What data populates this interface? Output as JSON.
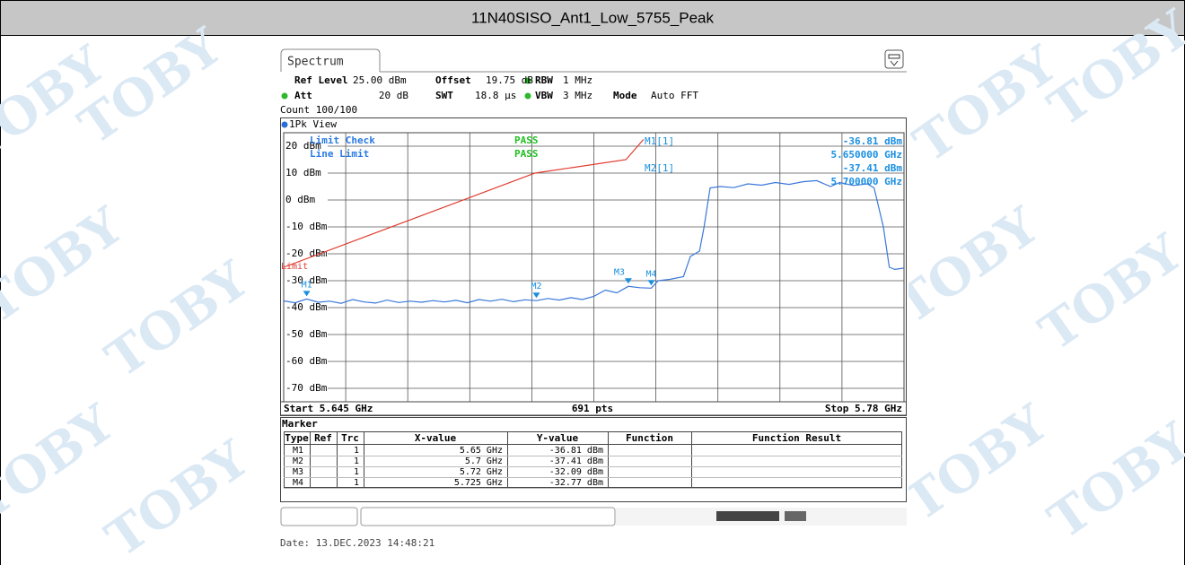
{
  "title": "11N40SISO_Ant1_Low_5755_Peak",
  "watermark": "TOBY",
  "screen": {
    "tab": "Spectrum",
    "settings": [
      {
        "label": "Ref Level",
        "value": "25.00 dBm"
      },
      {
        "label": "Offset",
        "value": "19.75 dB"
      },
      {
        "label": "RBW",
        "value": "1 MHz"
      },
      {
        "label": "Att",
        "value": "20 dB"
      },
      {
        "label": "SWT",
        "value": "18.8 µs"
      },
      {
        "label": "VBW",
        "value": "3 MHz"
      },
      {
        "label": "Mode",
        "value": "Auto FFT"
      }
    ],
    "count": "Count 100/100",
    "view": "1Pk View",
    "chart": {
      "type": "line",
      "xlim": [
        5.645,
        5.78
      ],
      "ylim": [
        -75,
        25
      ],
      "xticks": [
        5.6585,
        5.672,
        5.6855,
        5.699,
        5.7125,
        5.726,
        5.7395,
        5.753,
        5.7665
      ],
      "yticks": [
        {
          "value": 20,
          "label": "20 dBm"
        },
        {
          "value": 10,
          "label": "10 dBm"
        },
        {
          "value": 0,
          "label": "0 dBm"
        },
        {
          "value": -10,
          "label": "-10 dBm"
        },
        {
          "value": -20,
          "label": "-20 dBm"
        },
        {
          "value": -30,
          "label": "-30 dBm"
        },
        {
          "value": -40,
          "label": "-40 dBm"
        },
        {
          "value": -50,
          "label": "-50 dBm"
        },
        {
          "value": -60,
          "label": "-60 dBm"
        },
        {
          "value": -70,
          "label": "-70 dBm"
        }
      ],
      "color": "#3a78d8",
      "x": [
        5.645,
        5.6475,
        5.65,
        5.6525,
        5.655,
        5.6575,
        5.66,
        5.6625,
        5.665,
        5.6675,
        5.67,
        5.6725,
        5.675,
        5.6775,
        5.68,
        5.6825,
        5.685,
        5.6875,
        5.69,
        5.6925,
        5.695,
        5.6975,
        5.7,
        5.7025,
        5.705,
        5.7075,
        5.71,
        5.7125,
        5.715,
        5.7175,
        5.72,
        5.7225,
        5.725,
        5.7265,
        5.729,
        5.732,
        5.7335,
        5.7355,
        5.7365,
        5.7378,
        5.74,
        5.743,
        5.746,
        5.749,
        5.752,
        5.755,
        5.758,
        5.761,
        5.764,
        5.766,
        5.769,
        5.772,
        5.7735,
        5.7755,
        5.7768,
        5.778,
        5.78
      ],
      "values": [
        -37.5,
        -38.2,
        -36.81,
        -38.0,
        -37.6,
        -38.4,
        -37.0,
        -37.9,
        -38.3,
        -37.2,
        -38.1,
        -37.6,
        -38.0,
        -37.4,
        -37.9,
        -37.3,
        -38.2,
        -37.0,
        -37.6,
        -36.9,
        -37.8,
        -37.1,
        -37.41,
        -36.6,
        -37.2,
        -36.3,
        -37.0,
        -35.8,
        -33.5,
        -34.5,
        -32.09,
        -32.6,
        -32.77,
        -30.0,
        -29.5,
        -28.5,
        -21.0,
        -19.0,
        -10.0,
        4.5,
        5.0,
        4.6,
        6.0,
        5.5,
        6.5,
        5.8,
        6.8,
        7.2,
        5.0,
        6.5,
        5.4,
        6.0,
        4.5,
        -10.0,
        -25.0,
        -25.8,
        -25.3
      ],
      "limit": {
        "name": "Limit",
        "color": "#e03a2e",
        "x": [
          5.645,
          5.6997,
          5.7195,
          5.7233
        ],
        "values": [
          -25,
          10,
          15,
          22.5
        ]
      },
      "markers": [
        {
          "name": "M1",
          "x": 5.65,
          "y": -36.81
        },
        {
          "name": "M2",
          "x": 5.7,
          "y": -37.41
        },
        {
          "name": "M3",
          "x": 5.72,
          "y": -32.09
        },
        {
          "name": "M4",
          "x": 5.725,
          "y": -32.77
        }
      ],
      "checks": [
        {
          "label": "Limit Check",
          "result": "PASS"
        },
        {
          "label": "Line Limit",
          "result": "PASS"
        }
      ],
      "readouts": [
        {
          "label": "M1[1]",
          "value": "-36.81 dBm",
          "freq": "5.650000 GHz"
        },
        {
          "label": "M2[1]",
          "value": "-37.41 dBm",
          "freq": "5.700000 GHz"
        }
      ],
      "start": "Start 5.645 GHz",
      "points": "691 pts",
      "stop": "Stop 5.78 GHz"
    },
    "marker_table": {
      "title": "Marker",
      "columns": [
        "Type",
        "Ref",
        "Trc",
        "X-value",
        "Y-value",
        "Function",
        "Function Result"
      ],
      "rows": [
        [
          "M1",
          "",
          "1",
          "5.65 GHz",
          "-36.81 dBm",
          "",
          ""
        ],
        [
          "M2",
          "",
          "1",
          "5.7 GHz",
          "-37.41 dBm",
          "",
          ""
        ],
        [
          "M3",
          "",
          "1",
          "5.72 GHz",
          "-32.09 dBm",
          "",
          ""
        ],
        [
          "M4",
          "",
          "1",
          "5.725 GHz",
          "-32.77 dBm",
          "",
          ""
        ]
      ]
    }
  },
  "date": "Date: 13.DEC.2023 14:48:21"
}
